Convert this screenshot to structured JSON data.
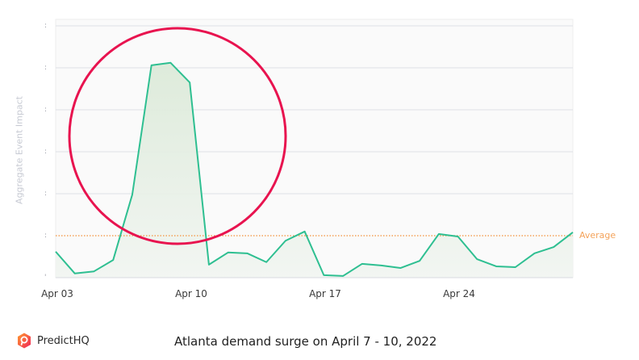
{
  "chart_data": {
    "type": "area",
    "title": "",
    "xlabel": "",
    "ylabel": "Aggregate Event Impact",
    "x_tick_labels": [
      "Apr 03",
      "Apr 10",
      "Apr 17",
      "Apr 24"
    ],
    "y_tick_labels": [
      ":",
      ":",
      ":",
      ":",
      ":",
      ":",
      "'"
    ],
    "ylim": [
      0,
      6
    ],
    "grid": true,
    "legend": null,
    "x": [
      "Apr 03",
      "Apr 04",
      "Apr 05",
      "Apr 06",
      "Apr 07",
      "Apr 08",
      "Apr 09",
      "Apr 10",
      "Apr 11",
      "Apr 12",
      "Apr 13",
      "Apr 14",
      "Apr 15",
      "Apr 16",
      "Apr 17",
      "Apr 18",
      "Apr 19",
      "Apr 20",
      "Apr 21",
      "Apr 22",
      "Apr 23",
      "Apr 24",
      "Apr 25",
      "Apr 26",
      "Apr 27",
      "Apr 28",
      "Apr 29",
      "Apr 30"
    ],
    "series": [
      {
        "name": "Aggregate Event Impact",
        "color": "#2ebf91",
        "values": [
          0.62,
          0.1,
          0.15,
          0.42,
          1.98,
          5.06,
          5.12,
          4.65,
          0.31,
          0.6,
          0.58,
          0.37,
          0.88,
          1.1,
          0.06,
          0.04,
          0.33,
          0.29,
          0.23,
          0.4,
          1.04,
          0.98,
          0.44,
          0.27,
          0.25,
          0.58,
          0.73,
          1.08
        ]
      }
    ],
    "reference_lines": [
      {
        "name": "Average",
        "value": 1.0,
        "color": "#f4a259",
        "style": "dotted"
      }
    ],
    "annotations": [
      {
        "type": "circle",
        "color": "#e8134f",
        "highlight": "Apr 07 - Apr 10 surge"
      }
    ]
  },
  "labels": {
    "y_axis": "Aggregate Event Impact",
    "average": "Average",
    "x_ticks": [
      "Apr 03",
      "Apr 10",
      "Apr 17",
      "Apr 24"
    ]
  },
  "footer": {
    "brand": "PredictHQ",
    "caption": "Atlanta demand surge on April 7 - 10, 2022"
  },
  "colors": {
    "line": "#2ebf91",
    "area": "#e4efe4",
    "average": "#f4a259",
    "highlight_circle": "#e8134f",
    "grid": "#dde0e6",
    "plot_bg": "#fafafa"
  }
}
